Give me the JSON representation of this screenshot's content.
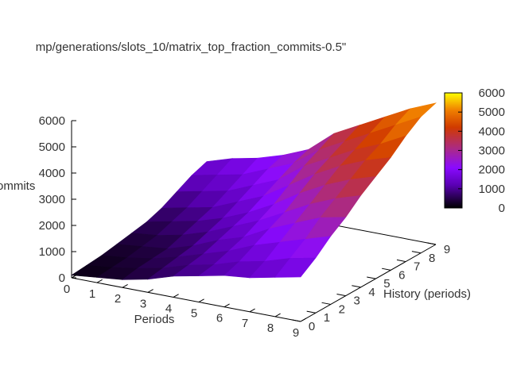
{
  "chart_data": {
    "type": "surface3d",
    "title": "mp/generations/slots_10/matrix_top_fraction_commits-0.5\"",
    "xlabel": "Periods",
    "ylabel": "History (periods)",
    "zlabel": "ommits",
    "x": [
      0,
      1,
      2,
      3,
      4,
      5,
      6,
      7,
      8,
      9
    ],
    "y": [
      0,
      1,
      2,
      3,
      4,
      5,
      6,
      7,
      8,
      9
    ],
    "zlim": [
      0,
      6000
    ],
    "z_ticks": [
      "0",
      "1000",
      "2000",
      "3000",
      "4000",
      "5000",
      "6000"
    ],
    "x_ticks": [
      "0",
      "1",
      "2",
      "3",
      "4",
      "5",
      "6",
      "7",
      "8",
      "9"
    ],
    "y_ticks": [
      "0",
      "1",
      "2",
      "3",
      "4",
      "5",
      "6",
      "7",
      "8",
      "9"
    ],
    "colorbar": {
      "ticks": [
        "0",
        "1000",
        "2000",
        "3000",
        "4000",
        "5000",
        "6000"
      ],
      "range": [
        0,
        6000
      ]
    },
    "z": [
      [
        100,
        150,
        200,
        300,
        400,
        500,
        700,
        1000,
        1300,
        1500
      ],
      [
        200,
        250,
        300,
        400,
        500,
        700,
        900,
        1200,
        1500,
        1800
      ],
      [
        300,
        400,
        450,
        500,
        700,
        900,
        1100,
        1400,
        1700,
        2000
      ],
      [
        500,
        600,
        700,
        800,
        1000,
        1200,
        1500,
        1800,
        2100,
        2300
      ],
      [
        800,
        900,
        1000,
        1200,
        1400,
        1600,
        1900,
        2200,
        2500,
        2700
      ],
      [
        1000,
        1100,
        1300,
        1500,
        1800,
        2100,
        2500,
        2900,
        3200,
        3500
      ],
      [
        1200,
        1400,
        1700,
        2000,
        2300,
        2700,
        3100,
        3400,
        3700,
        4000
      ],
      [
        1300,
        1600,
        2000,
        2400,
        2800,
        3200,
        3600,
        3900,
        4200,
        4500
      ],
      [
        1500,
        1900,
        2300,
        2800,
        3200,
        3600,
        4000,
        4300,
        4700,
        5000
      ],
      [
        1700,
        2100,
        2600,
        3000,
        3500,
        3900,
        4300,
        4800,
        5200,
        5400
      ]
    ]
  }
}
